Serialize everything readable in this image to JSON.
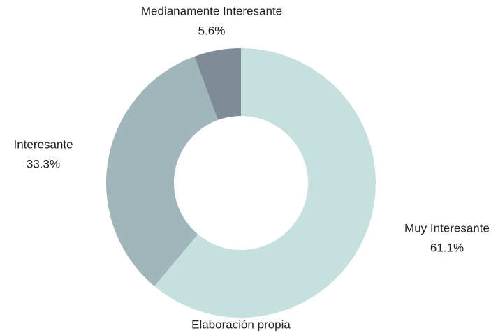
{
  "chart_data": {
    "type": "donut",
    "categories": [
      "Muy Interesante",
      "Interesante",
      "Medianamente Interesante"
    ],
    "values": [
      61.1,
      33.3,
      5.6
    ],
    "value_labels": [
      "61.1%",
      "33.3%",
      "5.6%"
    ],
    "colors": [
      "#c6e0df",
      "#a0b6ba",
      "#7d8c97"
    ],
    "caption": "Elaboración propia"
  }
}
